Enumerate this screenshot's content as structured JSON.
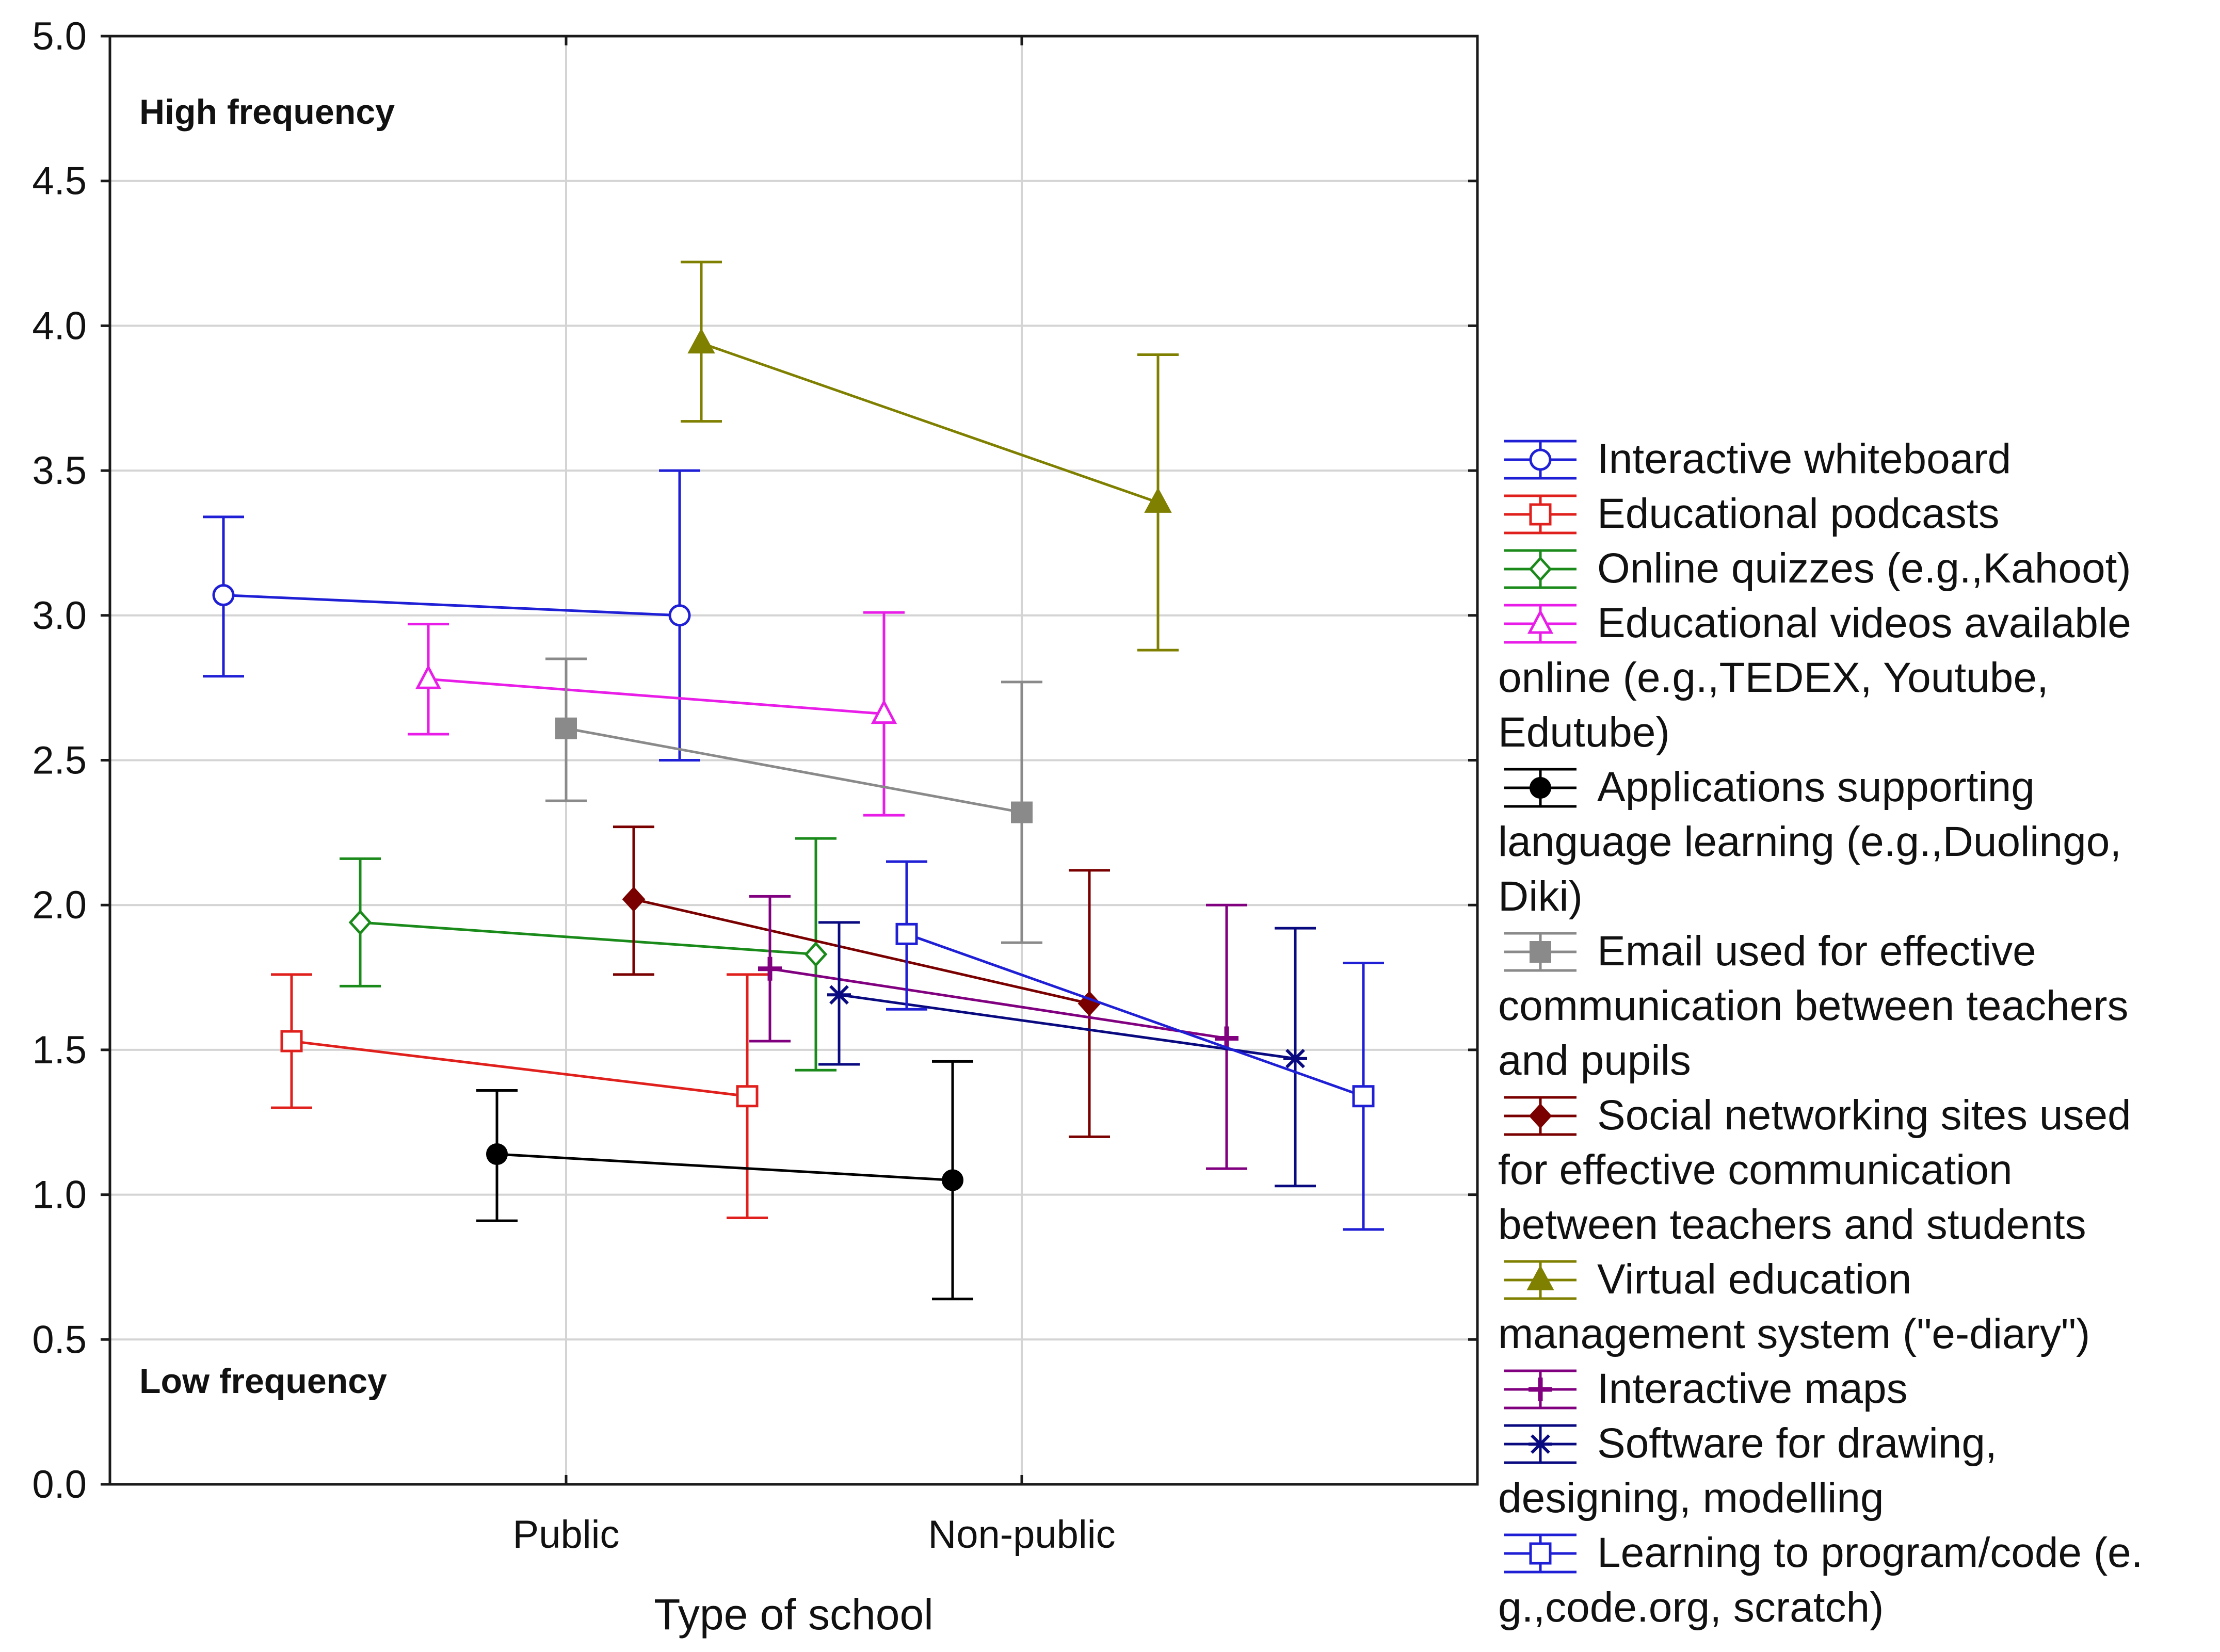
{
  "chart_data": {
    "type": "line",
    "title": "",
    "xlabel": "Type of school",
    "ylabel": "",
    "ylim": [
      0,
      5
    ],
    "yticks": [
      "0.0",
      "0.5",
      "1.0",
      "1.5",
      "2.0",
      "2.5",
      "3.0",
      "3.5",
      "4.0",
      "4.5",
      "5.0"
    ],
    "categories": [
      "Public",
      "Non-public"
    ],
    "grid": true,
    "legend_position": "right",
    "annotations": {
      "high": "High frequency",
      "low": "Low frequency"
    },
    "series": [
      {
        "name": "Interactive whiteboard",
        "label_lines": [
          "Interactive whiteboard"
        ],
        "color": "#1f1fd6",
        "marker": "circle-open",
        "values": [
          3.07,
          3.0
        ],
        "lower": [
          2.79,
          2.5
        ],
        "upper": [
          3.34,
          3.5
        ]
      },
      {
        "name": "Educational podcasts",
        "label_lines": [
          "Educational podcasts"
        ],
        "color": "#e0201c",
        "marker": "square-open",
        "values": [
          1.53,
          1.34
        ],
        "lower": [
          1.3,
          0.92
        ],
        "upper": [
          1.76,
          1.76
        ]
      },
      {
        "name": "Online quizzes (e.g.,Kahoot)",
        "label_lines": [
          "Online quizzes (e.g.,Kahoot)"
        ],
        "color": "#1a8a1a",
        "marker": "diamond-open",
        "values": [
          1.94,
          1.83
        ],
        "lower": [
          1.72,
          1.43
        ],
        "upper": [
          2.16,
          2.23
        ]
      },
      {
        "name": "Educational videos available online (e.g.,TEDEX, Youtube, Edutube)",
        "label_lines": [
          "Educational videos available",
          "online (e.g.,TEDEX, Youtube,",
          "Edutube)"
        ],
        "color": "#e81ee8",
        "marker": "triangle-open",
        "values": [
          2.78,
          2.66
        ],
        "lower": [
          2.59,
          2.31
        ],
        "upper": [
          2.97,
          3.01
        ]
      },
      {
        "name": "Applications supporting language learning (e.g.,Duolingo, Diki)",
        "label_lines": [
          "Applications supporting",
          "language learning (e.g.,Duolingo,",
          "Diki)"
        ],
        "color": "#000000",
        "marker": "circle-filled",
        "values": [
          1.14,
          1.05
        ],
        "lower": [
          0.91,
          0.64
        ],
        "upper": [
          1.36,
          1.46
        ]
      },
      {
        "name": "Email used for effective communication between teachers and pupils",
        "label_lines": [
          "Email used for effective",
          "communication between teachers",
          "and pupils"
        ],
        "color": "#8a8a8a",
        "marker": "square-filled",
        "values": [
          2.61,
          2.32
        ],
        "lower": [
          2.36,
          1.87
        ],
        "upper": [
          2.85,
          2.77
        ]
      },
      {
        "name": "Social networking sites used for effective communication between teachers and students",
        "label_lines": [
          "Social networking sites used",
          "for effective communication",
          "between teachers and students"
        ],
        "color": "#7a0000",
        "marker": "diamond-filled",
        "values": [
          2.02,
          1.66
        ],
        "lower": [
          1.76,
          1.2
        ],
        "upper": [
          2.27,
          2.12
        ]
      },
      {
        "name": "Virtual education management system (\"e-diary\")",
        "label_lines": [
          "Virtual education",
          "management system (\"e-diary\")"
        ],
        "color": "#7f7f00",
        "marker": "triangle-filled",
        "values": [
          3.94,
          3.39
        ],
        "lower": [
          3.67,
          2.88
        ],
        "upper": [
          4.22,
          3.9
        ]
      },
      {
        "name": "Interactive maps",
        "label_lines": [
          "Interactive maps"
        ],
        "color": "#800080",
        "marker": "plus",
        "values": [
          1.78,
          1.54
        ],
        "lower": [
          1.53,
          1.09
        ],
        "upper": [
          2.03,
          2.0
        ]
      },
      {
        "name": "Software for drawing, designing, modelling",
        "label_lines": [
          "Software for drawing,",
          "designing, modelling"
        ],
        "color": "#0a0a80",
        "marker": "asterisk",
        "values": [
          1.69,
          1.47
        ],
        "lower": [
          1.45,
          1.03
        ],
        "upper": [
          1.94,
          1.92
        ]
      },
      {
        "name": "Learning to program/code (e.g.,code.org, scratch)",
        "label_lines": [
          "Learning to program/code (e.",
          "g.,code.org, scratch)"
        ],
        "color": "#1f1fd6",
        "marker": "square-open",
        "values": [
          1.9,
          1.34
        ],
        "lower": [
          1.64,
          0.88
        ],
        "upper": [
          2.15,
          1.8
        ]
      }
    ]
  }
}
